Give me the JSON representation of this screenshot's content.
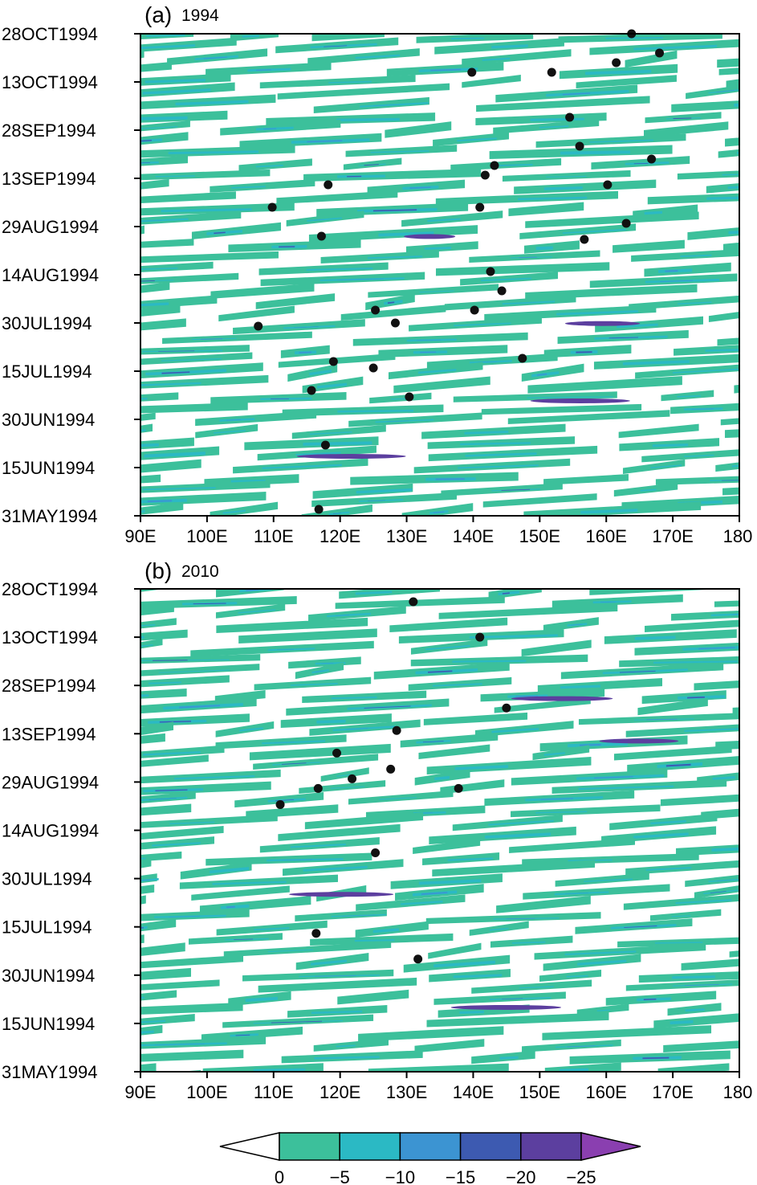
{
  "colors": {
    "frame": "#000000",
    "background": "#ffffff",
    "dot": "#111111"
  },
  "chart_data": [
    {
      "type": "heatmap",
      "panel_label": "(a)",
      "year_label": "1994",
      "x_ticks": [
        "90E",
        "100E",
        "110E",
        "120E",
        "130E",
        "140E",
        "150E",
        "160E",
        "170E",
        "180"
      ],
      "xlim": [
        90,
        180
      ],
      "y_ticks": [
        "31MAY1994",
        "15JUN1994",
        "30JUN1994",
        "15JUL1994",
        "30JUL1994",
        "14AUG1994",
        "29AUG1994",
        "13SEP1994",
        "28SEP1994",
        "13OCT1994",
        "28OCT1994"
      ],
      "ylim": [
        "31MAY1994",
        "28OCT1994"
      ],
      "points": [
        {
          "lon": 163.8,
          "date": "28OCT1994"
        },
        {
          "lon": 168.0,
          "date": "22OCT1994"
        },
        {
          "lon": 161.5,
          "date": "19OCT1994"
        },
        {
          "lon": 139.8,
          "date": "16OCT1994"
        },
        {
          "lon": 151.8,
          "date": "16OCT1994"
        },
        {
          "lon": 154.5,
          "date": "02OCT1994"
        },
        {
          "lon": 156.0,
          "date": "23SEP1994"
        },
        {
          "lon": 166.8,
          "date": "19SEP1994"
        },
        {
          "lon": 143.2,
          "date": "17SEP1994"
        },
        {
          "lon": 141.8,
          "date": "14SEP1994"
        },
        {
          "lon": 118.2,
          "date": "11SEP1994"
        },
        {
          "lon": 160.2,
          "date": "11SEP1994"
        },
        {
          "lon": 141.0,
          "date": "04SEP1994"
        },
        {
          "lon": 109.8,
          "date": "04SEP1994"
        },
        {
          "lon": 163.0,
          "date": "30AUG1994"
        },
        {
          "lon": 117.2,
          "date": "26AUG1994"
        },
        {
          "lon": 156.7,
          "date": "25AUG1994"
        },
        {
          "lon": 142.6,
          "date": "15AUG1994"
        },
        {
          "lon": 144.3,
          "date": "09AUG1994"
        },
        {
          "lon": 125.3,
          "date": "03AUG1994"
        },
        {
          "lon": 128.3,
          "date": "30JUL1994"
        },
        {
          "lon": 140.2,
          "date": "03AUG1994"
        },
        {
          "lon": 107.7,
          "date": "29JUL1994"
        },
        {
          "lon": 147.4,
          "date": "19JUL1994"
        },
        {
          "lon": 119.0,
          "date": "18JUL1994"
        },
        {
          "lon": 125.0,
          "date": "16JUL1994"
        },
        {
          "lon": 115.7,
          "date": "09JUL1994"
        },
        {
          "lon": 130.4,
          "date": "07JUL1994"
        },
        {
          "lon": 117.8,
          "date": "22JUN1994"
        },
        {
          "lon": 116.8,
          "date": "02JUN1994"
        }
      ]
    },
    {
      "type": "heatmap",
      "panel_label": "(b)",
      "year_label": "2010",
      "x_ticks": [
        "90E",
        "100E",
        "110E",
        "120E",
        "130E",
        "140E",
        "150E",
        "160E",
        "170E",
        "180"
      ],
      "xlim": [
        90,
        180
      ],
      "y_ticks": [
        "31MAY1994",
        "15JUN1994",
        "30JUN1994",
        "15JUL1994",
        "30JUL1994",
        "14AUG1994",
        "29AUG1994",
        "13SEP1994",
        "28SEP1994",
        "13OCT1994",
        "28OCT1994"
      ],
      "ylim": [
        "31MAY1994",
        "28OCT1994"
      ],
      "points": [
        {
          "lon": 131.0,
          "date": "24OCT1994"
        },
        {
          "lon": 141.0,
          "date": "13OCT1994"
        },
        {
          "lon": 145.0,
          "date": "21SEP1994"
        },
        {
          "lon": 128.5,
          "date": "14SEP1994"
        },
        {
          "lon": 119.5,
          "date": "07SEP1994"
        },
        {
          "lon": 127.6,
          "date": "02SEP1994"
        },
        {
          "lon": 121.8,
          "date": "30AUG1994"
        },
        {
          "lon": 116.7,
          "date": "27AUG1994"
        },
        {
          "lon": 137.8,
          "date": "27AUG1994"
        },
        {
          "lon": 111.0,
          "date": "22AUG1994"
        },
        {
          "lon": 125.3,
          "date": "07AUG1994"
        },
        {
          "lon": 116.4,
          "date": "13JUL1994"
        },
        {
          "lon": 131.7,
          "date": "05JUL1994"
        }
      ]
    }
  ],
  "colorbar": {
    "labels": [
      "0",
      "−5",
      "−10",
      "−15",
      "−20",
      "−25"
    ],
    "colors": [
      "#ffffff",
      "#3cc09b",
      "#2bb9c4",
      "#3c94d2",
      "#3d5ab1",
      "#5c3f9f",
      "#8a3fb0"
    ]
  }
}
